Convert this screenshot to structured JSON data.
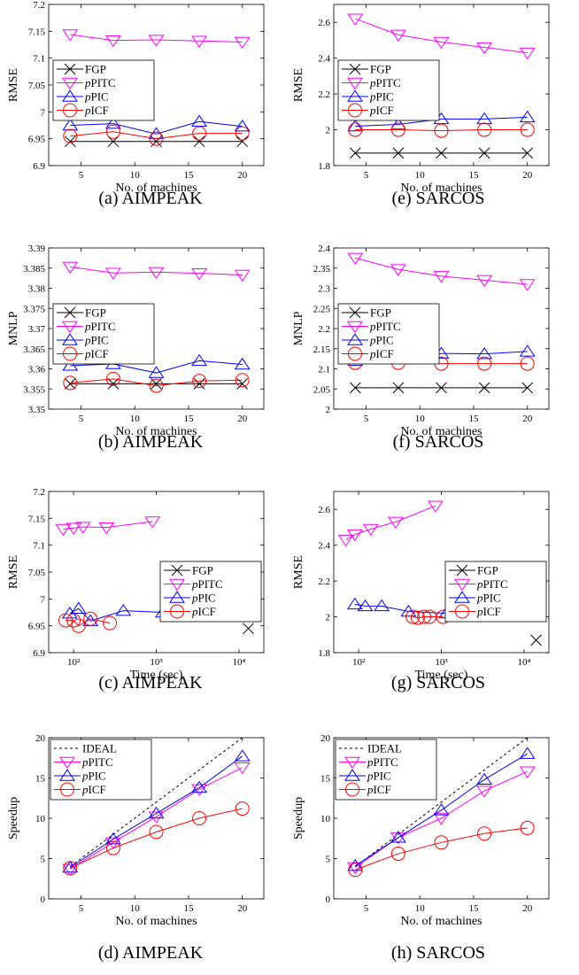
{
  "figure": {
    "colors": {
      "FGP": "#000000",
      "pPITC": "#ff00ff",
      "pPIC": "#0000ff",
      "pICF": "#ff0000",
      "IDEAL": "#000000"
    },
    "markers": {
      "FGP": "x-mark",
      "pPITC": "triangle-down",
      "pPIC": "triangle-up",
      "pICF": "circle",
      "IDEAL": "dashed-line"
    }
  },
  "chart_data": [
    {
      "id": "a",
      "type": "line",
      "caption": "(a) AIMPEAK",
      "xlabel": "No. of machines",
      "ylabel": "RMSE",
      "xlim": [
        2,
        22
      ],
      "ylim": [
        6.9,
        7.2
      ],
      "xticks": [
        "5",
        "10",
        "15",
        "20"
      ],
      "yticks": [
        "6.9",
        "6.95",
        "7",
        "7.05",
        "7.1",
        "7.15",
        "7.2"
      ],
      "legend": {
        "position": "middle-left",
        "entries": [
          "FGP",
          "pPITC",
          "pPIC",
          "pICF"
        ]
      },
      "series": [
        {
          "name": "FGP",
          "x": [
            4,
            8,
            12,
            16,
            20
          ],
          "y": [
            6.945,
            6.945,
            6.945,
            6.945,
            6.945
          ]
        },
        {
          "name": "pPITC",
          "x": [
            4,
            8,
            12,
            16,
            20
          ],
          "y": [
            7.144,
            7.133,
            7.134,
            7.132,
            7.13
          ]
        },
        {
          "name": "pPIC",
          "x": [
            4,
            8,
            12,
            16,
            20
          ],
          "y": [
            6.975,
            6.978,
            6.959,
            6.982,
            6.973
          ]
        },
        {
          "name": "pICF",
          "x": [
            4,
            8,
            12,
            16,
            20
          ],
          "y": [
            6.955,
            6.963,
            6.95,
            6.96,
            6.96
          ]
        }
      ]
    },
    {
      "id": "e",
      "type": "line",
      "caption": "(e) SARCOS",
      "xlabel": "No. of machines",
      "ylabel": "RMSE",
      "xlim": [
        2,
        22
      ],
      "ylim": [
        1.8,
        2.7
      ],
      "xticks": [
        "5",
        "10",
        "15",
        "20"
      ],
      "yticks": [
        "1.8",
        "2",
        "2.2",
        "2.4",
        "2.6"
      ],
      "legend": {
        "position": "middle-left",
        "entries": [
          "FGP",
          "pPITC",
          "pPIC",
          "pICF"
        ]
      },
      "series": [
        {
          "name": "FGP",
          "x": [
            4,
            8,
            12,
            16,
            20
          ],
          "y": [
            1.87,
            1.87,
            1.87,
            1.87,
            1.87
          ]
        },
        {
          "name": "pPITC",
          "x": [
            4,
            8,
            12,
            16,
            20
          ],
          "y": [
            2.62,
            2.53,
            2.49,
            2.46,
            2.43
          ]
        },
        {
          "name": "pPIC",
          "x": [
            4,
            8,
            12,
            16,
            20
          ],
          "y": [
            2.02,
            2.03,
            2.06,
            2.06,
            2.07
          ]
        },
        {
          "name": "pICF",
          "x": [
            4,
            8,
            12,
            16,
            20
          ],
          "y": [
            2.0,
            2.0,
            1.995,
            2.0,
            2.0
          ]
        }
      ]
    },
    {
      "id": "b",
      "type": "line",
      "caption": "(b) AIMPEAK",
      "xlabel": "No. of machines",
      "ylabel": "MNLP",
      "xlim": [
        2,
        22
      ],
      "ylim": [
        3.35,
        3.39
      ],
      "xticks": [
        "5",
        "10",
        "15",
        "20"
      ],
      "yticks": [
        "3.35",
        "3.355",
        "3.36",
        "3.365",
        "3.37",
        "3.375",
        "3.38",
        "3.385",
        "3.39"
      ],
      "legend": {
        "position": "middle-left",
        "entries": [
          "FGP",
          "pPITC",
          "pPIC",
          "pICF"
        ]
      },
      "series": [
        {
          "name": "FGP",
          "x": [
            4,
            8,
            12,
            16,
            20
          ],
          "y": [
            3.3563,
            3.3563,
            3.3563,
            3.3563,
            3.3563
          ]
        },
        {
          "name": "pPITC",
          "x": [
            4,
            8,
            12,
            16,
            20
          ],
          "y": [
            3.3853,
            3.3838,
            3.384,
            3.3837,
            3.3833
          ]
        },
        {
          "name": "pPIC",
          "x": [
            4,
            8,
            12,
            16,
            20
          ],
          "y": [
            3.3608,
            3.3612,
            3.359,
            3.362,
            3.3611
          ]
        },
        {
          "name": "pICF",
          "x": [
            4,
            8,
            12,
            16,
            20
          ],
          "y": [
            3.3565,
            3.3575,
            3.3558,
            3.357,
            3.3572
          ]
        }
      ]
    },
    {
      "id": "f",
      "type": "line",
      "caption": "(f) SARCOS",
      "xlabel": "No. of machines",
      "ylabel": "MNLP",
      "xlim": [
        2,
        22
      ],
      "ylim": [
        2.0,
        2.4
      ],
      "xticks": [
        "5",
        "10",
        "15",
        "20"
      ],
      "yticks": [
        "2",
        "2.05",
        "2.1",
        "2.15",
        "2.2",
        "2.25",
        "2.3",
        "2.35",
        "2.4"
      ],
      "legend": {
        "position": "middle-left",
        "entries": [
          "FGP",
          "pPITC",
          "pPIC",
          "pICF"
        ]
      },
      "series": [
        {
          "name": "FGP",
          "x": [
            4,
            8,
            12,
            16,
            20
          ],
          "y": [
            2.053,
            2.053,
            2.053,
            2.053,
            2.053
          ]
        },
        {
          "name": "pPITC",
          "x": [
            4,
            8,
            12,
            16,
            20
          ],
          "y": [
            2.375,
            2.347,
            2.33,
            2.32,
            2.31
          ]
        },
        {
          "name": "pPIC",
          "x": [
            4,
            8,
            12,
            16,
            20
          ],
          "y": [
            2.12,
            2.125,
            2.138,
            2.137,
            2.143
          ]
        },
        {
          "name": "pICF",
          "x": [
            4,
            8,
            12,
            16,
            20
          ],
          "y": [
            2.115,
            2.115,
            2.113,
            2.113,
            2.113
          ]
        }
      ]
    },
    {
      "id": "c",
      "type": "scatter",
      "caption": "(c) AIMPEAK",
      "xlabel": "Time (sec)",
      "ylabel": "RMSE",
      "xscale": "log",
      "xlim": [
        50,
        20000
      ],
      "ylim": [
        6.9,
        7.2
      ],
      "xticks": [
        "10²",
        "10³",
        "10⁴"
      ],
      "yticks": [
        "6.9",
        "6.95",
        "7",
        "7.05",
        "7.1",
        "7.15",
        "7.2"
      ],
      "legend": {
        "position": "middle-right",
        "entries": [
          "FGP",
          "pPITC",
          "pPIC",
          "pICF"
        ]
      },
      "series": [
        {
          "name": "FGP",
          "x": [
            13000
          ],
          "y": [
            6.945
          ]
        },
        {
          "name": "pPITC",
          "x": [
            75,
            100,
            130,
            250,
            900
          ],
          "y": [
            7.13,
            7.132,
            7.134,
            7.133,
            7.144
          ]
        },
        {
          "name": "pPIC",
          "x": [
            90,
            115,
            160,
            400,
            1200
          ],
          "y": [
            6.973,
            6.982,
            6.959,
            6.978,
            6.975
          ]
        },
        {
          "name": "pICF",
          "x": [
            80,
            100,
            115,
            160,
            275
          ],
          "y": [
            6.96,
            6.96,
            6.95,
            6.963,
            6.955
          ]
        }
      ]
    },
    {
      "id": "g",
      "type": "scatter",
      "caption": "(g) SARCOS",
      "xlabel": "Time (sec)",
      "ylabel": "RMSE",
      "xscale": "log",
      "xlim": [
        50,
        20000
      ],
      "ylim": [
        1.8,
        2.7
      ],
      "xticks": [
        "10²",
        "10³",
        "10⁴"
      ],
      "yticks": [
        "1.8",
        "2",
        "2.2",
        "2.4",
        "2.6"
      ],
      "legend": {
        "position": "middle-right",
        "entries": [
          "FGP",
          "pPITC",
          "pPIC",
          "pICF"
        ]
      },
      "series": [
        {
          "name": "FGP",
          "x": [
            14000
          ],
          "y": [
            1.87
          ]
        },
        {
          "name": "pPITC",
          "x": [
            70,
            90,
            140,
            280,
            850
          ],
          "y": [
            2.43,
            2.46,
            2.49,
            2.53,
            2.62
          ]
        },
        {
          "name": "pPIC",
          "x": [
            90,
            120,
            190,
            400,
            1150
          ],
          "y": [
            2.07,
            2.06,
            2.06,
            2.03,
            2.02
          ]
        },
        {
          "name": "pICF",
          "x": [
            450,
            520,
            620,
            720,
            1050
          ],
          "y": [
            2.0,
            1.995,
            2.0,
            2.0,
            2.0
          ]
        }
      ]
    },
    {
      "id": "d",
      "type": "line",
      "caption": "(d) AIMPEAK",
      "xlabel": "No. of machines",
      "ylabel": "Speedup",
      "xlim": [
        2,
        22
      ],
      "ylim": [
        0,
        20
      ],
      "xticks": [
        "5",
        "10",
        "15",
        "20"
      ],
      "yticks": [
        "0",
        "5",
        "10",
        "15",
        "20"
      ],
      "legend": {
        "position": "top-left",
        "entries": [
          "IDEAL",
          "pPITC",
          "pPIC",
          "pICF"
        ]
      },
      "series": [
        {
          "name": "IDEAL",
          "x": [
            4,
            20
          ],
          "y": [
            4,
            20
          ]
        },
        {
          "name": "pPITC",
          "x": [
            4,
            8,
            12,
            16,
            20
          ],
          "y": [
            3.7,
            7.0,
            10.2,
            13.6,
            16.3
          ]
        },
        {
          "name": "pPIC",
          "x": [
            4,
            8,
            12,
            16,
            20
          ],
          "y": [
            3.9,
            7.4,
            10.6,
            13.8,
            17.7
          ]
        },
        {
          "name": "pICF",
          "x": [
            4,
            8,
            12,
            16,
            20
          ],
          "y": [
            3.8,
            6.3,
            8.3,
            10.0,
            11.2
          ]
        }
      ]
    },
    {
      "id": "h",
      "type": "line",
      "caption": "(h) SARCOS",
      "xlabel": "No. of machines",
      "ylabel": "Speedup",
      "xlim": [
        2,
        22
      ],
      "ylim": [
        0,
        20
      ],
      "xticks": [
        "5",
        "10",
        "15",
        "20"
      ],
      "yticks": [
        "0",
        "5",
        "10",
        "15",
        "20"
      ],
      "legend": {
        "position": "top-left",
        "entries": [
          "IDEAL",
          "pPITC",
          "pPIC",
          "pICF"
        ]
      },
      "series": [
        {
          "name": "IDEAL",
          "x": [
            4,
            20
          ],
          "y": [
            4,
            20
          ]
        },
        {
          "name": "pPITC",
          "x": [
            4,
            8,
            12,
            16,
            20
          ],
          "y": [
            3.9,
            7.6,
            10.0,
            13.4,
            15.8
          ]
        },
        {
          "name": "pPIC",
          "x": [
            4,
            8,
            12,
            16,
            20
          ],
          "y": [
            4.1,
            7.6,
            11.0,
            14.8,
            18.0
          ]
        },
        {
          "name": "pICF",
          "x": [
            4,
            8,
            12,
            16,
            20
          ],
          "y": [
            3.6,
            5.6,
            7.0,
            8.1,
            8.8
          ]
        }
      ]
    }
  ]
}
